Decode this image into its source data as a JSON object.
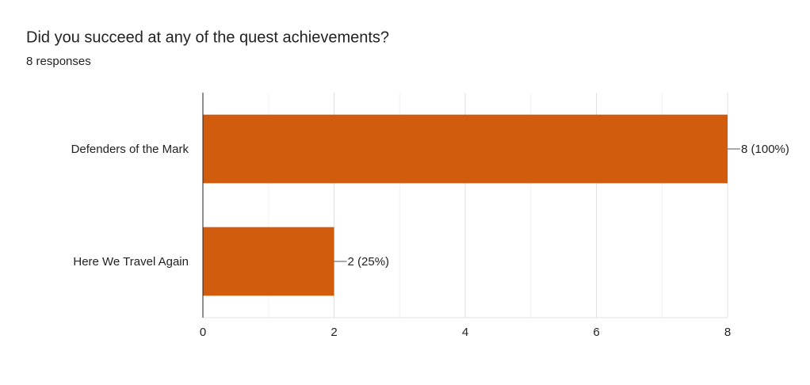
{
  "chart_data": {
    "type": "bar",
    "orientation": "horizontal",
    "title": "Did you succeed at any of the quest achievements?",
    "subtitle": "8 responses",
    "categories": [
      "Defenders of the Mark",
      "Here We Travel Again"
    ],
    "values": [
      8,
      2
    ],
    "value_labels": [
      "8 (100%)",
      "2 (25%)"
    ],
    "color": "#d15c0e",
    "xlim": [
      0,
      8
    ],
    "xticks": [
      0,
      2,
      4,
      6,
      8
    ],
    "xticks_minor": [
      1,
      3,
      5,
      7
    ],
    "grid": true
  }
}
